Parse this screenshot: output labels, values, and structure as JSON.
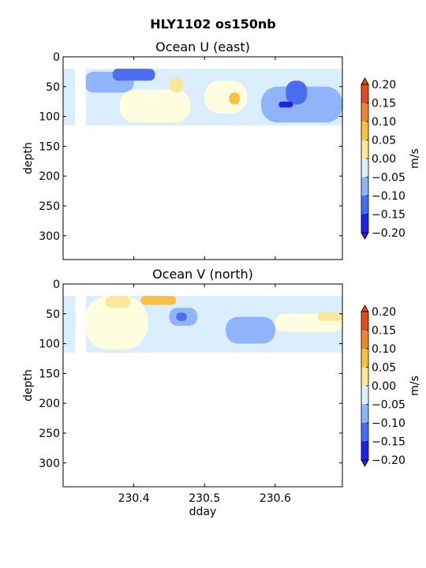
{
  "figure": {
    "title": "HLY1102 os150nb"
  },
  "colorbar": {
    "label": "m/s",
    "ticks": [
      "0.20",
      "0.15",
      "0.10",
      "0.05",
      "0.00",
      "−0.05",
      "−0.10",
      "−0.15",
      "−0.20"
    ],
    "levels": [
      -0.2,
      -0.15,
      -0.1,
      -0.05,
      0,
      0.05,
      0.1,
      0.15,
      0.2
    ],
    "colors": [
      "#2121ee",
      "#4a6ef2",
      "#8fb4fa",
      "#dbeefe",
      "#fefde0",
      "#fbe79a",
      "#f7c243",
      "#f08535",
      "#e34a1e"
    ],
    "extend": "both"
  },
  "chart_data": [
    {
      "type": "heatmap",
      "title": "Ocean U (east)",
      "xlabel": "",
      "ylabel": "depth",
      "xlim": [
        230.3,
        230.695
      ],
      "ylim": [
        340,
        0
      ],
      "x_ticks": [
        230.4,
        230.5,
        230.6
      ],
      "x_tick_labels": [
        "",
        "",
        ""
      ],
      "y_ticks": [
        0,
        50,
        100,
        150,
        200,
        250,
        300
      ],
      "y_tick_labels": [
        "0",
        "50",
        "100",
        "150",
        "200",
        "250",
        "300"
      ],
      "depth_range": [
        20,
        115
      ],
      "gaps": [
        [
          230.317,
          230.332
        ]
      ],
      "regions": [
        {
          "x": [
            230.3,
            230.695
          ],
          "depth": [
            20,
            115
          ],
          "value": -0.03
        },
        {
          "x": [
            230.33,
            230.4
          ],
          "depth": [
            25,
            60
          ],
          "value": -0.09
        },
        {
          "x": [
            230.37,
            230.43
          ],
          "depth": [
            20,
            40
          ],
          "value": -0.12
        },
        {
          "x": [
            230.38,
            230.48
          ],
          "depth": [
            55,
            110
          ],
          "value": 0.02
        },
        {
          "x": [
            230.45,
            230.47
          ],
          "depth": [
            35,
            60
          ],
          "value": 0.08
        },
        {
          "x": [
            230.5,
            230.56
          ],
          "depth": [
            40,
            95
          ],
          "value": 0.03
        },
        {
          "x": [
            230.535,
            230.55
          ],
          "depth": [
            60,
            80
          ],
          "value": 0.1
        },
        {
          "x": [
            230.58,
            230.695
          ],
          "depth": [
            50,
            110
          ],
          "value": -0.08
        },
        {
          "x": [
            230.615,
            230.645
          ],
          "depth": [
            40,
            80
          ],
          "value": -0.13
        },
        {
          "x": [
            230.605,
            230.625
          ],
          "depth": [
            75,
            85
          ],
          "value": -0.17
        }
      ]
    },
    {
      "type": "heatmap",
      "title": "Ocean V (north)",
      "xlabel": "dday",
      "ylabel": "depth",
      "xlim": [
        230.3,
        230.695
      ],
      "ylim": [
        340,
        0
      ],
      "x_ticks": [
        230.4,
        230.5,
        230.6
      ],
      "x_tick_labels": [
        "230.4",
        "230.5",
        "230.6"
      ],
      "y_ticks": [
        0,
        50,
        100,
        150,
        200,
        250,
        300
      ],
      "y_tick_labels": [
        "0",
        "50",
        "100",
        "150",
        "200",
        "250",
        "300"
      ],
      "depth_range": [
        20,
        115
      ],
      "gaps": [
        [
          230.317,
          230.332
        ]
      ],
      "regions": [
        {
          "x": [
            230.3,
            230.695
          ],
          "depth": [
            20,
            115
          ],
          "value": -0.02
        },
        {
          "x": [
            230.33,
            230.42
          ],
          "depth": [
            20,
            110
          ],
          "value": 0.02
        },
        {
          "x": [
            230.36,
            230.395
          ],
          "depth": [
            20,
            40
          ],
          "value": 0.07
        },
        {
          "x": [
            230.41,
            230.46
          ],
          "depth": [
            20,
            35
          ],
          "value": 0.1
        },
        {
          "x": [
            230.42,
            230.44
          ],
          "depth": [
            20,
            28
          ],
          "value": 0.14
        },
        {
          "x": [
            230.45,
            230.49
          ],
          "depth": [
            40,
            70
          ],
          "value": -0.08
        },
        {
          "x": [
            230.46,
            230.475
          ],
          "depth": [
            48,
            62
          ],
          "value": -0.13
        },
        {
          "x": [
            230.53,
            230.6
          ],
          "depth": [
            55,
            100
          ],
          "value": -0.06
        },
        {
          "x": [
            230.6,
            230.695
          ],
          "depth": [
            50,
            80
          ],
          "value": 0.03
        },
        {
          "x": [
            230.66,
            230.695
          ],
          "depth": [
            48,
            62
          ],
          "value": 0.07
        }
      ]
    }
  ]
}
